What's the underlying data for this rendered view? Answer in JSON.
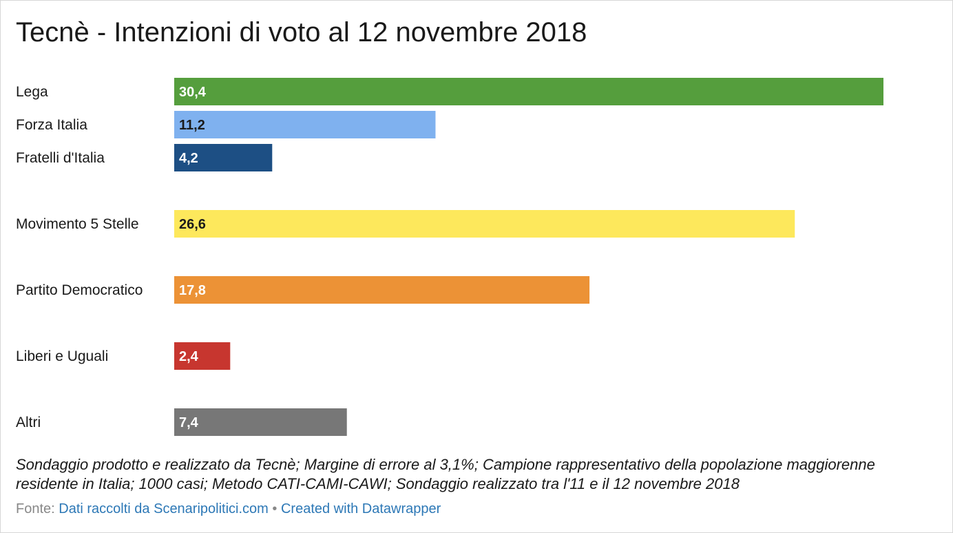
{
  "chart_data": {
    "type": "bar",
    "title": "Tecnè - Intenzioni di voto al 12 novembre 2018",
    "categories": [
      "Lega",
      "Forza Italia",
      "Fratelli d'Italia",
      "Movimento 5 Stelle",
      "Partito Democratico",
      "Liberi e Uguali",
      "Altri"
    ],
    "values": [
      30.4,
      11.2,
      4.2,
      26.6,
      17.8,
      2.4,
      7.4
    ],
    "value_labels": [
      "30,4",
      "11,2",
      "4,2",
      "26,6",
      "17,8",
      "2,4",
      "7,4"
    ],
    "colors": [
      "#559e3d",
      "#7fb1ef",
      "#1d4f84",
      "#fde85c",
      "#ec9236",
      "#c7362f",
      "#777777"
    ],
    "label_colors": [
      "#ffffff",
      "#1a1a1a",
      "#ffffff",
      "#1a1a1a",
      "#ffffff",
      "#ffffff",
      "#ffffff"
    ],
    "orientation": "horizontal",
    "xlim": [
      0,
      30.4
    ]
  },
  "notes": "Sondaggio prodotto e realizzato da Tecnè; Margine di errore al 3,1%; Campione rappresentativo della popolazione maggiorenne residente in Italia; 1000 casi; Metodo CATI-CAMI-CAWI; Sondaggio realizzato tra l'11 e il 12 novembre 2018",
  "footer": {
    "source_label": "Fonte:",
    "source_link": "Dati raccolti da Scenaripolitici.com",
    "separator": "•",
    "credit_link": "Created with Datawrapper"
  }
}
